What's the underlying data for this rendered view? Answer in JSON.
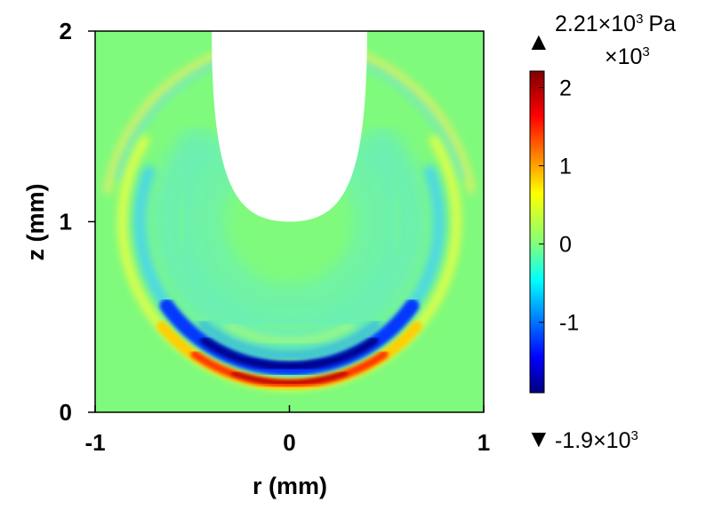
{
  "chart_data": {
    "type": "heatmap",
    "title": "",
    "xlabel": "r (mm)",
    "ylabel": "z (mm)",
    "xlim": [
      -1,
      1
    ],
    "ylim": [
      0,
      2
    ],
    "x_ticks": [
      -1,
      0,
      1
    ],
    "y_ticks": [
      0,
      1,
      2
    ],
    "x_tick_labels": [
      "-1",
      "0",
      "1"
    ],
    "y_tick_labels": [
      "0",
      "1",
      "2"
    ],
    "grid": false,
    "colormap": "jet",
    "colorbar": {
      "multiplier_label": "×10",
      "multiplier_exp": "3",
      "ticks": [
        -1,
        0,
        1,
        2
      ],
      "tick_labels": [
        "-1",
        "0",
        "1",
        "2"
      ],
      "range": [
        -1.9,
        2.21
      ],
      "max_marker": {
        "symbol": "▲",
        "mantissa": "2.21×10",
        "exp": "3",
        "unit": "Pa"
      },
      "min_marker": {
        "symbol": "▼",
        "mantissa": "-1.9×10",
        "exp": "3"
      }
    },
    "field": {
      "background_value": 0,
      "bubble_tip_z": 1.0,
      "bubble_top_halfwidth_r": 0.4,
      "wavefront_center_z": 1.0,
      "positive_peak": {
        "r": 0,
        "z": 0.15,
        "value": 2.21
      },
      "negative_trough": {
        "r": 0,
        "z": 0.25,
        "value": -1.9
      },
      "outer_ring_radius": 0.95
    }
  },
  "colors": {
    "background_field": "#7ffa7c",
    "positive_high": "#a00000",
    "negative_low": "#00008a",
    "bubble": "#ffffff"
  }
}
